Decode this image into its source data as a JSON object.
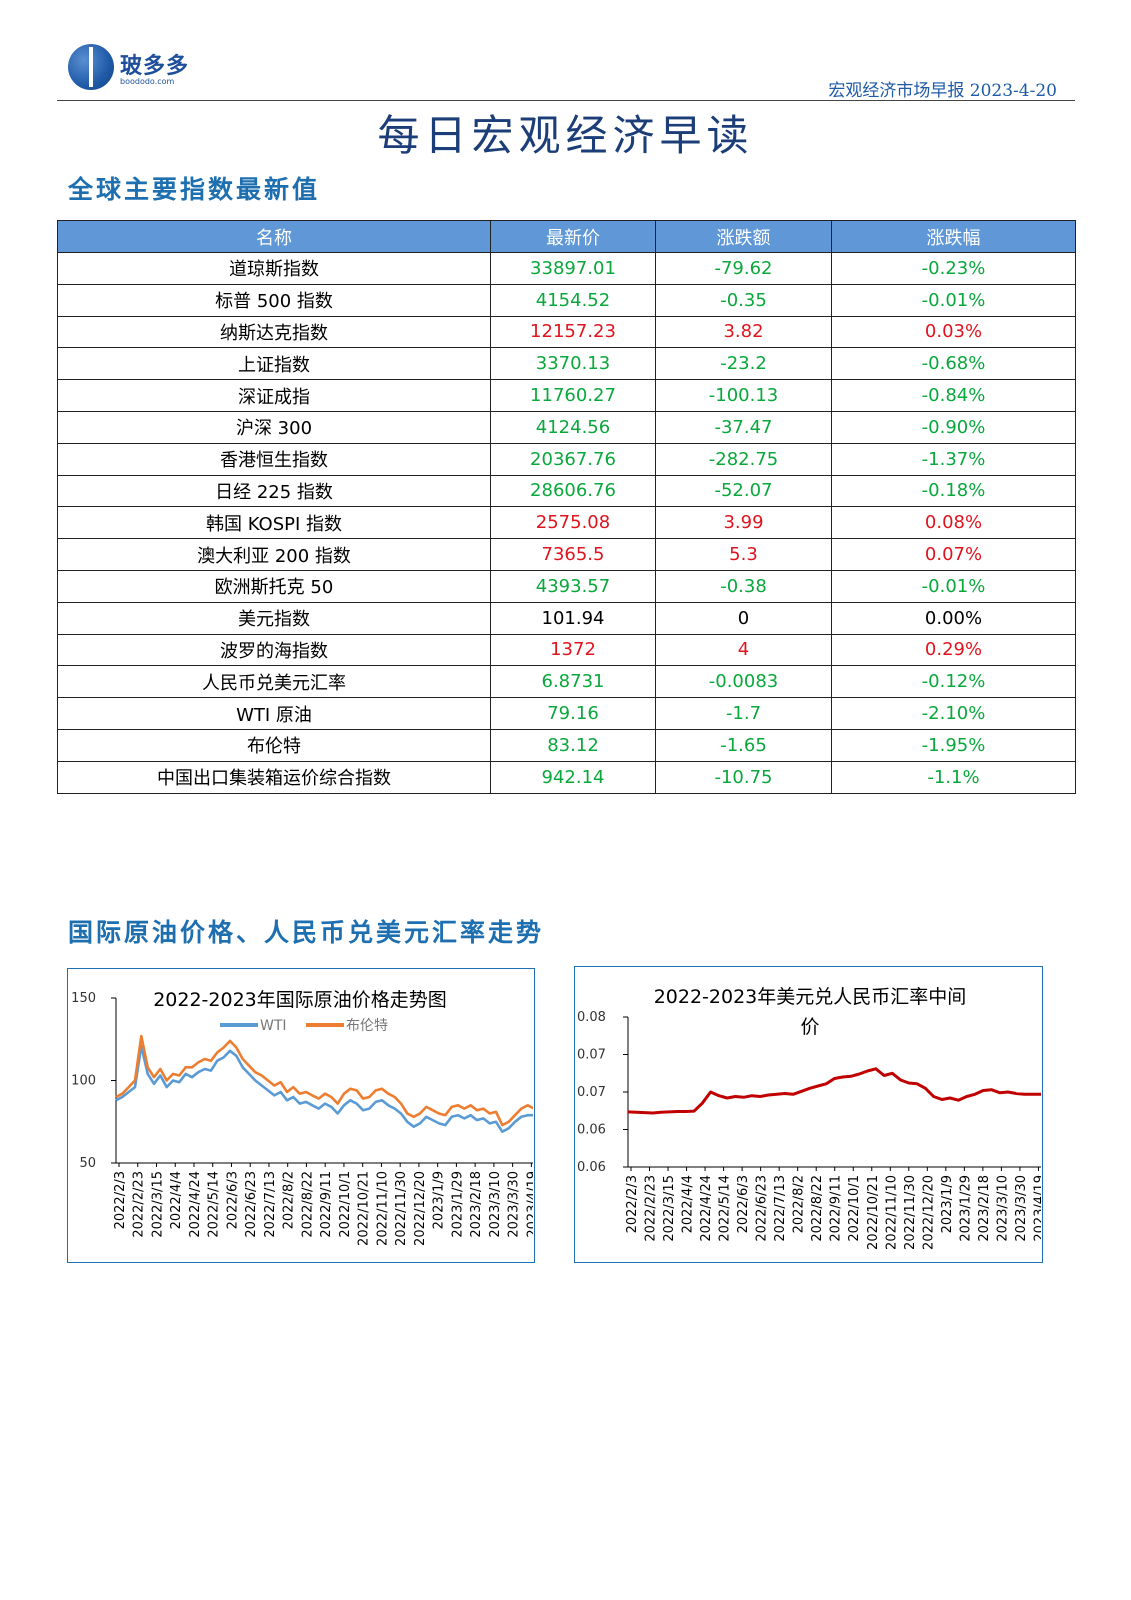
{
  "header": {
    "logo_name": "玻多多",
    "logo_url_text": "boododo.com",
    "report_label": "宏观经济市场早报 2023-4-20"
  },
  "page_title": "每日宏观经济早读",
  "section1_title": "全球主要指数最新值",
  "section2_title": "国际原油价格、人民币兑美元汇率走势",
  "table": {
    "headers": [
      "名称",
      "最新价",
      "涨跌额",
      "涨跌幅"
    ],
    "rows": [
      {
        "name": "道琼斯指数",
        "price": "33897.01",
        "change": "-79.62",
        "pct": "-0.23%",
        "dir": "down"
      },
      {
        "name": "标普 500 指数",
        "price": "4154.52",
        "change": "-0.35",
        "pct": "-0.01%",
        "dir": "down"
      },
      {
        "name": "纳斯达克指数",
        "price": "12157.23",
        "change": "3.82",
        "pct": "0.03%",
        "dir": "up"
      },
      {
        "name": "上证指数",
        "price": "3370.13",
        "change": "-23.2",
        "pct": "-0.68%",
        "dir": "down"
      },
      {
        "name": "深证成指",
        "price": "11760.27",
        "change": "-100.13",
        "pct": "-0.84%",
        "dir": "down"
      },
      {
        "name": "沪深 300",
        "price": "4124.56",
        "change": "-37.47",
        "pct": "-0.90%",
        "dir": "down"
      },
      {
        "name": "香港恒生指数",
        "price": "20367.76",
        "change": "-282.75",
        "pct": "-1.37%",
        "dir": "down"
      },
      {
        "name": "日经 225 指数",
        "price": "28606.76",
        "change": "-52.07",
        "pct": "-0.18%",
        "dir": "down"
      },
      {
        "name": "韩国 KOSPI 指数",
        "price": "2575.08",
        "change": "3.99",
        "pct": "0.08%",
        "dir": "up"
      },
      {
        "name": "澳大利亚 200 指数",
        "price": "7365.5",
        "change": "5.3",
        "pct": "0.07%",
        "dir": "up"
      },
      {
        "name": "欧洲斯托克 50",
        "price": "4393.57",
        "change": "-0.38",
        "pct": "-0.01%",
        "dir": "down"
      },
      {
        "name": "美元指数",
        "price": "101.94",
        "change": "0",
        "pct": "0.00%",
        "dir": "flat"
      },
      {
        "name": "波罗的海指数",
        "price": "1372",
        "change": "4",
        "pct": "0.29%",
        "dir": "up"
      },
      {
        "name": "人民币兑美元汇率",
        "price": "6.8731",
        "change": "-0.0083",
        "pct": "-0.12%",
        "dir": "down"
      },
      {
        "name": "WTI 原油",
        "price": "79.16",
        "change": "-1.7",
        "pct": "-2.10%",
        "dir": "down"
      },
      {
        "name": "布伦特",
        "price": "83.12",
        "change": "-1.65",
        "pct": "-1.95%",
        "dir": "down"
      },
      {
        "name": "中国出口集装箱运价综合指数",
        "price": "942.14",
        "change": "-10.75",
        "pct": "-1.1%",
        "dir": "down"
      }
    ],
    "colors": {
      "up": "#e0141e",
      "down": "#0aa83c",
      "flat": "#000000",
      "header_bg": "#5f97d7"
    }
  },
  "chart_data": [
    {
      "type": "line",
      "title": "2022-2023年国际原油价格走势图",
      "legend_position": "top",
      "ylim": [
        50,
        150
      ],
      "yticks": [
        "150",
        "100",
        "50"
      ],
      "x_tick_labels": [
        "2022/2/3",
        "2022/2/23",
        "2022/3/15",
        "2022/4/4",
        "2022/4/24",
        "2022/5/14",
        "2022/6/3",
        "2022/6/23",
        "2022/7/13",
        "2022/8/2",
        "2022/8/22",
        "2022/9/11",
        "2022/10/1",
        "2022/10/21",
        "2022/11/10",
        "2022/11/30",
        "2022/12/20",
        "2023/1/9",
        "2023/1/29",
        "2023/2/18",
        "2023/3/10",
        "2023/3/30",
        "2023/4/19"
      ],
      "grid": false,
      "series": [
        {
          "name": "WTI",
          "color": "#5b9bd5",
          "values": [
            88,
            90,
            93,
            96,
            121,
            104,
            98,
            103,
            96,
            100,
            99,
            104,
            102,
            105,
            107,
            106,
            112,
            114,
            118,
            115,
            108,
            104,
            100,
            97,
            94,
            91,
            93,
            88,
            90,
            86,
            87,
            85,
            83,
            86,
            84,
            80,
            85,
            88,
            86,
            82,
            83,
            87,
            88,
            85,
            83,
            80,
            75,
            72,
            74,
            78,
            76,
            74,
            73,
            78,
            79,
            77,
            79,
            76,
            77,
            74,
            75,
            69,
            71,
            75,
            78,
            79,
            79
          ]
        },
        {
          "name": "布伦特",
          "color": "#ed7d31",
          "values": [
            90,
            92,
            96,
            100,
            127,
            108,
            102,
            107,
            100,
            104,
            103,
            108,
            108,
            111,
            113,
            112,
            117,
            120,
            124,
            120,
            113,
            109,
            105,
            103,
            100,
            97,
            99,
            93,
            96,
            92,
            93,
            91,
            89,
            92,
            90,
            86,
            92,
            95,
            94,
            89,
            90,
            94,
            95,
            92,
            90,
            86,
            80,
            78,
            80,
            84,
            82,
            80,
            79,
            84,
            85,
            83,
            85,
            82,
            83,
            80,
            81,
            73,
            75,
            79,
            83,
            85,
            83
          ]
        }
      ]
    },
    {
      "type": "line",
      "title": "2022-2023年美元兑人民币汇率中间价",
      "ylim": [
        0.06,
        0.08
      ],
      "yticks": [
        "0.08",
        "0.07",
        "0.07",
        "0.06",
        "0.06"
      ],
      "x_tick_labels": [
        "2022/2/3",
        "2022/2/23",
        "2022/3/15",
        "2022/4/4",
        "2022/4/24",
        "2022/5/14",
        "2022/6/3",
        "2022/6/23",
        "2022/7/13",
        "2022/8/2",
        "2022/8/22",
        "2022/9/11",
        "2022/10/1",
        "2022/10/21",
        "2022/11/10",
        "2022/11/30",
        "2022/12/20",
        "2023/1/9",
        "2023/1/29",
        "2023/2/18",
        "2023/3/10",
        "2023/3/30",
        "2023/4/19"
      ],
      "grid": false,
      "series": [
        {
          "name": "",
          "color": "#c00000",
          "values": [
            0.06735,
            0.0673,
            0.06725,
            0.0672,
            0.0673,
            0.06735,
            0.0674,
            0.0674,
            0.06745,
            0.0685,
            0.07,
            0.0695,
            0.0692,
            0.0694,
            0.0693,
            0.0695,
            0.0694,
            0.0696,
            0.0697,
            0.0698,
            0.0697,
            0.0701,
            0.0705,
            0.0708,
            0.0711,
            0.0718,
            0.072,
            0.0721,
            0.0724,
            0.0728,
            0.0731,
            0.0722,
            0.0725,
            0.0716,
            0.0712,
            0.0711,
            0.0705,
            0.0694,
            0.069,
            0.0692,
            0.0689,
            0.0694,
            0.0697,
            0.0702,
            0.0703,
            0.0699,
            0.07,
            0.0698,
            0.0697,
            0.0697,
            0.0697
          ]
        }
      ]
    }
  ]
}
